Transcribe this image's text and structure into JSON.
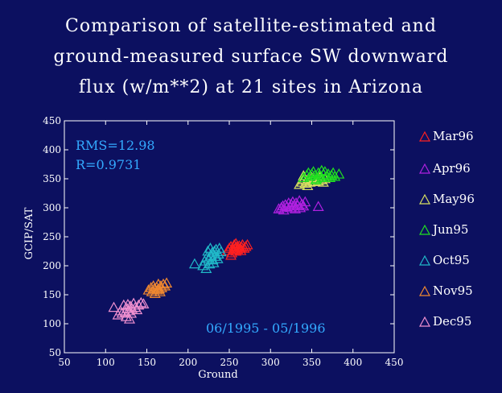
{
  "title_lines": [
    "Comparison of satellite-estimated and",
    "ground-measured surface SW downward",
    "flux (w/m**2) at 21 sites in Arizona"
  ],
  "chart_data": {
    "type": "scatter",
    "xlabel": "Ground",
    "ylabel": "GCIP/SAT",
    "xlim": [
      50,
      450
    ],
    "ylim": [
      50,
      450
    ],
    "xticks": [
      50,
      100,
      150,
      200,
      250,
      300,
      350,
      400,
      450
    ],
    "yticks": [
      50,
      100,
      150,
      200,
      250,
      300,
      350,
      400,
      450
    ],
    "grid": false,
    "legend_position": "right-outside",
    "annotations": {
      "rms": "RMS=12.98",
      "r": "R=0.9731",
      "period": "06/1995 - 05/1996"
    },
    "annotation_color": "#33aaff",
    "series": [
      {
        "name": "Mar96",
        "color": "#ff2020",
        "points": [
          [
            248,
            226
          ],
          [
            250,
            230
          ],
          [
            252,
            233
          ],
          [
            253,
            222
          ],
          [
            255,
            228
          ],
          [
            256,
            236
          ],
          [
            257,
            230
          ],
          [
            258,
            225
          ],
          [
            259,
            232
          ],
          [
            260,
            228
          ],
          [
            262,
            234
          ],
          [
            263,
            230
          ],
          [
            264,
            226
          ],
          [
            265,
            232
          ],
          [
            266,
            236
          ],
          [
            268,
            230
          ],
          [
            270,
            233
          ],
          [
            272,
            236
          ],
          [
            252,
            218
          ],
          [
            258,
            238
          ]
        ]
      },
      {
        "name": "Apr96",
        "color": "#b020e0",
        "points": [
          [
            310,
            298
          ],
          [
            313,
            300
          ],
          [
            315,
            303
          ],
          [
            316,
            296
          ],
          [
            318,
            305
          ],
          [
            320,
            302
          ],
          [
            322,
            308
          ],
          [
            324,
            300
          ],
          [
            325,
            306
          ],
          [
            327,
            310
          ],
          [
            328,
            303
          ],
          [
            330,
            298
          ],
          [
            331,
            308
          ],
          [
            333,
            304
          ],
          [
            335,
            312
          ],
          [
            336,
            300
          ],
          [
            338,
            306
          ],
          [
            340,
            303
          ],
          [
            342,
            310
          ],
          [
            358,
            302
          ]
        ]
      },
      {
        "name": "May96",
        "color": "#d8e060",
        "points": [
          [
            335,
            340
          ],
          [
            338,
            344
          ],
          [
            340,
            348
          ],
          [
            342,
            342
          ],
          [
            344,
            346
          ],
          [
            346,
            350
          ],
          [
            348,
            344
          ],
          [
            350,
            352
          ],
          [
            352,
            348
          ],
          [
            354,
            345
          ],
          [
            356,
            350
          ],
          [
            358,
            346
          ],
          [
            360,
            352
          ],
          [
            362,
            348
          ],
          [
            364,
            344
          ],
          [
            366,
            350
          ],
          [
            340,
            355
          ],
          [
            345,
            338
          ]
        ]
      },
      {
        "name": "Jun95",
        "color": "#20e020",
        "points": [
          [
            340,
            352
          ],
          [
            344,
            356
          ],
          [
            346,
            360
          ],
          [
            348,
            354
          ],
          [
            350,
            358
          ],
          [
            352,
            362
          ],
          [
            354,
            356
          ],
          [
            356,
            350
          ],
          [
            358,
            360
          ],
          [
            360,
            356
          ],
          [
            362,
            352
          ],
          [
            364,
            358
          ],
          [
            366,
            362
          ],
          [
            368,
            354
          ],
          [
            370,
            358
          ],
          [
            372,
            352
          ],
          [
            374,
            356
          ],
          [
            376,
            360
          ],
          [
            378,
            354
          ],
          [
            383,
            358
          ],
          [
            355,
            348
          ],
          [
            362,
            364
          ]
        ]
      },
      {
        "name": "Oct95",
        "color": "#20b8c8",
        "points": [
          [
            208,
            203
          ],
          [
            218,
            200
          ],
          [
            220,
            208
          ],
          [
            222,
            195
          ],
          [
            223,
            215
          ],
          [
            224,
            225
          ],
          [
            225,
            212
          ],
          [
            226,
            203
          ],
          [
            227,
            230
          ],
          [
            228,
            218
          ],
          [
            229,
            222
          ],
          [
            230,
            210
          ],
          [
            231,
            205
          ],
          [
            232,
            225
          ],
          [
            233,
            216
          ],
          [
            234,
            228
          ],
          [
            236,
            212
          ],
          [
            237,
            220
          ],
          [
            238,
            230
          ],
          [
            240,
            224
          ]
        ]
      },
      {
        "name": "Nov95",
        "color": "#f08830",
        "points": [
          [
            152,
            158
          ],
          [
            155,
            162
          ],
          [
            156,
            155
          ],
          [
            158,
            165
          ],
          [
            159,
            160
          ],
          [
            160,
            152
          ],
          [
            162,
            163
          ],
          [
            163,
            158
          ],
          [
            164,
            168
          ],
          [
            165,
            160
          ],
          [
            166,
            155
          ],
          [
            167,
            165
          ],
          [
            168,
            162
          ],
          [
            170,
            168
          ],
          [
            172,
            165
          ],
          [
            174,
            170
          ]
        ]
      },
      {
        "name": "Dec95",
        "color": "#f090d0",
        "points": [
          [
            110,
            128
          ],
          [
            115,
            115
          ],
          [
            118,
            122
          ],
          [
            120,
            118
          ],
          [
            122,
            132
          ],
          [
            124,
            120
          ],
          [
            125,
            112
          ],
          [
            126,
            126
          ],
          [
            127,
            133
          ],
          [
            128,
            122
          ],
          [
            130,
            130
          ],
          [
            131,
            118
          ],
          [
            132,
            126
          ],
          [
            134,
            135
          ],
          [
            136,
            128
          ],
          [
            138,
            124
          ],
          [
            140,
            132
          ],
          [
            143,
            136
          ],
          [
            146,
            134
          ],
          [
            129,
            108
          ]
        ]
      }
    ]
  }
}
